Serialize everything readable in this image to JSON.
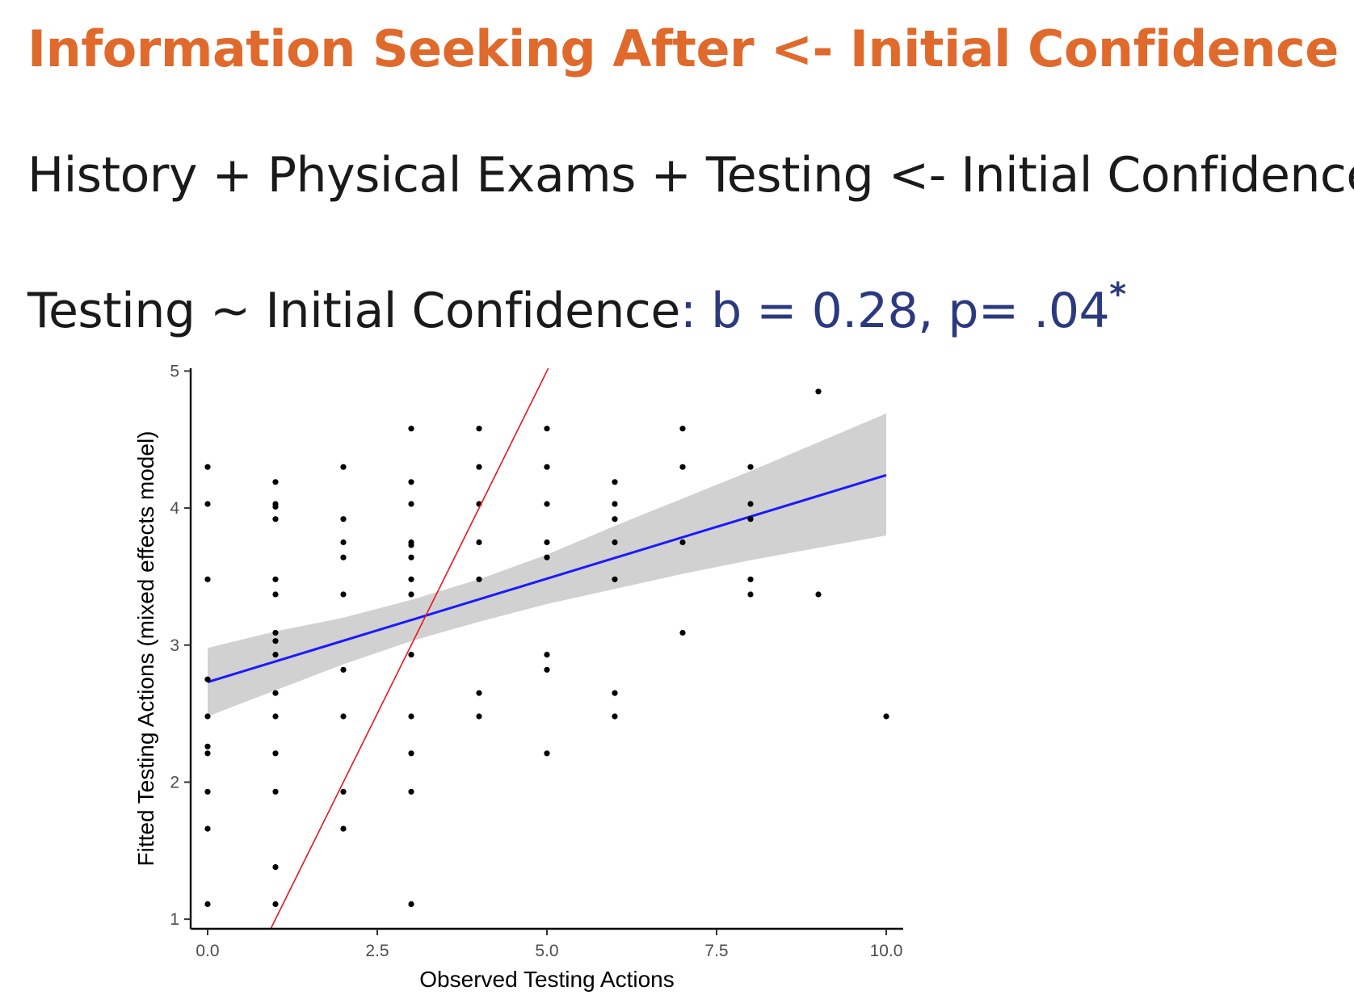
{
  "header": {
    "title": "Information Seeking After <- Initial Confidence",
    "subtitle": "History + Physical Exams + Testing <- Initial Confidence",
    "model_formula": "Testing ~ Initial Confidence",
    "stat_text": ": b = 0.28, p= .04",
    "significance_mark": "*"
  },
  "chart_data": {
    "type": "scatter",
    "xlabel": "Observed Testing Actions",
    "ylabel": "Fitted Testing Actions (mixed effects model)",
    "xlim": [
      -0.25,
      10.25
    ],
    "ylim": [
      0.93,
      5.02
    ],
    "x_ticks": [
      0,
      2.5,
      5,
      7.5,
      10
    ],
    "x_tick_labels": [
      "0.0",
      "2.5",
      "5.0",
      "7.5",
      "10.0"
    ],
    "y_ticks": [
      1,
      2,
      3,
      4,
      5
    ],
    "y_tick_labels": [
      "1",
      "2",
      "3",
      "4",
      "5"
    ],
    "grid": false,
    "colors": {
      "points": "#000000",
      "fit_line": "#1a1aff",
      "confidence_band": "#cccccc",
      "identity_line": "#e8141c"
    },
    "fit_line": {
      "x": [
        0,
        10
      ],
      "y": [
        2.73,
        4.24
      ]
    },
    "confidence_band": {
      "x": [
        0,
        1,
        2,
        3,
        4,
        5,
        6,
        7,
        8,
        9,
        10
      ],
      "lower": [
        2.48,
        2.67,
        2.86,
        3.03,
        3.17,
        3.3,
        3.41,
        3.52,
        3.62,
        3.71,
        3.8
      ],
      "upper": [
        2.98,
        3.1,
        3.2,
        3.33,
        3.48,
        3.66,
        3.87,
        4.07,
        4.27,
        4.48,
        4.69
      ]
    },
    "identity_line": {
      "x": [
        0.93,
        5.02
      ],
      "y": [
        0.93,
        5.02
      ]
    },
    "points": [
      {
        "x": 0,
        "y": 4.3
      },
      {
        "x": 0,
        "y": 4.03
      },
      {
        "x": 0,
        "y": 3.48
      },
      {
        "x": 0,
        "y": 2.75
      },
      {
        "x": 0,
        "y": 2.48
      },
      {
        "x": 0,
        "y": 2.26
      },
      {
        "x": 0,
        "y": 2.21
      },
      {
        "x": 0,
        "y": 1.93
      },
      {
        "x": 0,
        "y": 1.66
      },
      {
        "x": 0,
        "y": 1.11
      },
      {
        "x": 1,
        "y": 4.19
      },
      {
        "x": 1,
        "y": 4.03
      },
      {
        "x": 1,
        "y": 4.01
      },
      {
        "x": 1,
        "y": 3.92
      },
      {
        "x": 1,
        "y": 3.48
      },
      {
        "x": 1,
        "y": 3.37
      },
      {
        "x": 1,
        "y": 3.09
      },
      {
        "x": 1,
        "y": 3.03
      },
      {
        "x": 1,
        "y": 2.93
      },
      {
        "x": 1,
        "y": 2.65
      },
      {
        "x": 1,
        "y": 2.48
      },
      {
        "x": 1,
        "y": 2.21
      },
      {
        "x": 1,
        "y": 1.93
      },
      {
        "x": 1,
        "y": 1.38
      },
      {
        "x": 1,
        "y": 1.11
      },
      {
        "x": 2,
        "y": 4.3
      },
      {
        "x": 2,
        "y": 3.92
      },
      {
        "x": 2,
        "y": 3.75
      },
      {
        "x": 2,
        "y": 3.64
      },
      {
        "x": 2,
        "y": 3.37
      },
      {
        "x": 2,
        "y": 2.82
      },
      {
        "x": 2,
        "y": 2.48
      },
      {
        "x": 2,
        "y": 1.93
      },
      {
        "x": 2,
        "y": 1.66
      },
      {
        "x": 3,
        "y": 4.58
      },
      {
        "x": 3,
        "y": 4.19
      },
      {
        "x": 3,
        "y": 4.03
      },
      {
        "x": 3,
        "y": 3.75
      },
      {
        "x": 3,
        "y": 3.73
      },
      {
        "x": 3,
        "y": 3.64
      },
      {
        "x": 3,
        "y": 3.48
      },
      {
        "x": 3,
        "y": 3.37
      },
      {
        "x": 3,
        "y": 2.93
      },
      {
        "x": 3,
        "y": 2.48
      },
      {
        "x": 3,
        "y": 2.21
      },
      {
        "x": 3,
        "y": 1.93
      },
      {
        "x": 3,
        "y": 1.11
      },
      {
        "x": 4,
        "y": 4.58
      },
      {
        "x": 4,
        "y": 4.3
      },
      {
        "x": 4,
        "y": 4.03
      },
      {
        "x": 4,
        "y": 3.75
      },
      {
        "x": 4,
        "y": 3.48
      },
      {
        "x": 4,
        "y": 2.65
      },
      {
        "x": 4,
        "y": 2.48
      },
      {
        "x": 5,
        "y": 4.58
      },
      {
        "x": 5,
        "y": 4.3
      },
      {
        "x": 5,
        "y": 4.03
      },
      {
        "x": 5,
        "y": 3.75
      },
      {
        "x": 5,
        "y": 3.64
      },
      {
        "x": 5,
        "y": 2.93
      },
      {
        "x": 5,
        "y": 2.82
      },
      {
        "x": 5,
        "y": 2.21
      },
      {
        "x": 6,
        "y": 4.19
      },
      {
        "x": 6,
        "y": 4.03
      },
      {
        "x": 6,
        "y": 3.92
      },
      {
        "x": 6,
        "y": 3.75
      },
      {
        "x": 6,
        "y": 3.48
      },
      {
        "x": 6,
        "y": 2.65
      },
      {
        "x": 6,
        "y": 2.48
      },
      {
        "x": 7,
        "y": 4.58
      },
      {
        "x": 7,
        "y": 4.3
      },
      {
        "x": 7,
        "y": 3.75
      },
      {
        "x": 7,
        "y": 3.09
      },
      {
        "x": 8,
        "y": 4.3
      },
      {
        "x": 8,
        "y": 4.03
      },
      {
        "x": 8,
        "y": 3.92
      },
      {
        "x": 8,
        "y": 3.48
      },
      {
        "x": 8,
        "y": 3.37
      },
      {
        "x": 9,
        "y": 4.85
      },
      {
        "x": 9,
        "y": 3.37
      },
      {
        "x": 10,
        "y": 2.48
      }
    ]
  }
}
